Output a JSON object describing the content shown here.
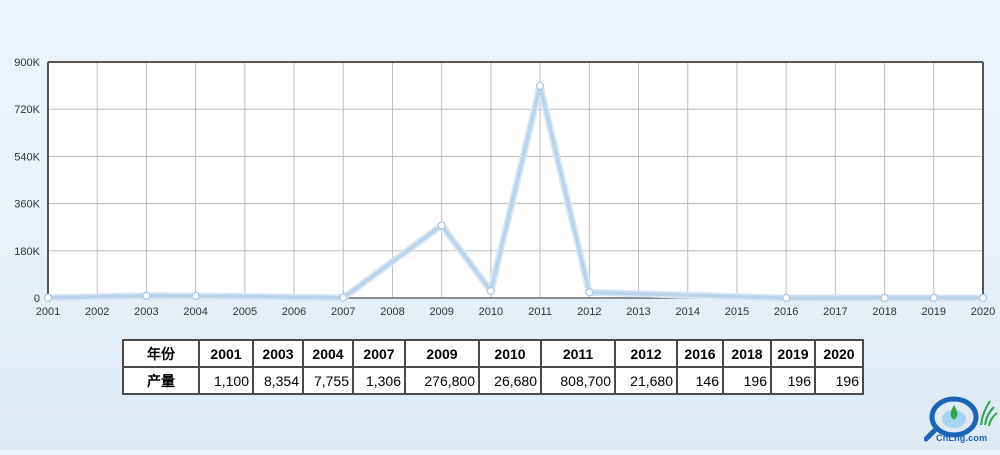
{
  "chart_data": {
    "type": "line",
    "x_categories": [
      "2001",
      "2002",
      "2003",
      "2004",
      "2005",
      "2006",
      "2007",
      "2008",
      "2009",
      "2010",
      "2011",
      "2012",
      "2013",
      "2014",
      "2015",
      "2016",
      "2017",
      "2018",
      "2019",
      "2020"
    ],
    "series": [
      {
        "points": [
          {
            "x": "2001",
            "y": 1100
          },
          {
            "x": "2003",
            "y": 8354
          },
          {
            "x": "2004",
            "y": 7755
          },
          {
            "x": "2007",
            "y": 1306
          },
          {
            "x": "2009",
            "y": 276800
          },
          {
            "x": "2010",
            "y": 26680
          },
          {
            "x": "2011",
            "y": 808700
          },
          {
            "x": "2012",
            "y": 21680
          },
          {
            "x": "2016",
            "y": 146
          },
          {
            "x": "2018",
            "y": 196
          },
          {
            "x": "2019",
            "y": 196
          },
          {
            "x": "2020",
            "y": 196
          }
        ]
      }
    ],
    "ylim": [
      0,
      900000
    ],
    "y_ticks": [
      0,
      180000,
      360000,
      540000,
      720000,
      900000
    ],
    "y_tick_labels": [
      "0",
      "180K",
      "360K",
      "540K",
      "720K",
      "900K"
    ],
    "grid": true,
    "line_color": "#b9d3ea",
    "marker_color": "#ffffff"
  },
  "table": {
    "header_label": "年份",
    "value_label": "产量",
    "columns": [
      "2001",
      "2003",
      "2004",
      "2007",
      "2009",
      "2010",
      "2011",
      "2012",
      "2016",
      "2018",
      "2019",
      "2020"
    ],
    "values": [
      "1,100",
      "8,354",
      "7,755",
      "1,306",
      "276,800",
      "26,680",
      "808,700",
      "21,680",
      "146",
      "196",
      "196",
      "196"
    ]
  },
  "logo": {
    "text": "CnLng.com",
    "primary_color": "#1d63b8",
    "accent_color": "#2ea84a"
  }
}
